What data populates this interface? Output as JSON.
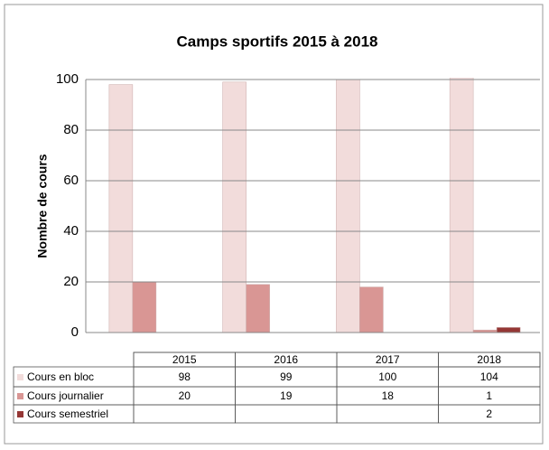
{
  "chart_data": {
    "type": "bar",
    "title": "Camps sportifs  2015 à 2018",
    "ylabel": "Nombre de cours",
    "categories": [
      "2015",
      "2016",
      "2017",
      "2018"
    ],
    "series": [
      {
        "name": "Cours en bloc",
        "color": "#f2dcdb",
        "values": [
          98,
          99,
          100,
          104
        ]
      },
      {
        "name": "Cours journalier",
        "color": "#d99694",
        "values": [
          20,
          19,
          18,
          1
        ]
      },
      {
        "name": "Cours semestriel",
        "color": "#953735",
        "values": [
          null,
          null,
          null,
          2
        ]
      }
    ],
    "ylim": [
      0,
      100
    ],
    "yticks": [
      0,
      20,
      40,
      60,
      80,
      100
    ],
    "grid": true
  }
}
